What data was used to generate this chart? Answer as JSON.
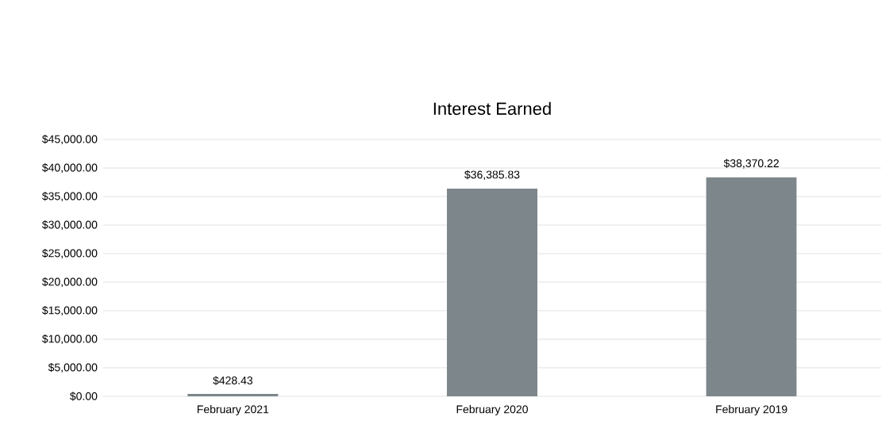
{
  "chart_data": {
    "type": "bar",
    "title": "Interest Earned",
    "categories": [
      "February 2021",
      "February 2020",
      "February 2019"
    ],
    "values": [
      428.43,
      36385.83,
      38370.22
    ],
    "value_labels": [
      "$428.43",
      "$36,385.83",
      "$38,370.22"
    ],
    "color": "#7d878b",
    "ylim": [
      0,
      45000
    ],
    "yticks": [
      {
        "value": 0,
        "label": "$0.00"
      },
      {
        "value": 5000,
        "label": "$5,000.00"
      },
      {
        "value": 10000,
        "label": "$10,000.00"
      },
      {
        "value": 15000,
        "label": "$15,000.00"
      },
      {
        "value": 20000,
        "label": "$20,000.00"
      },
      {
        "value": 25000,
        "label": "$25,000.00"
      },
      {
        "value": 30000,
        "label": "$30,000.00"
      },
      {
        "value": 35000,
        "label": "$35,000.00"
      },
      {
        "value": 40000,
        "label": "$40,000.00"
      },
      {
        "value": 45000,
        "label": "$45,000.00"
      }
    ],
    "grid": "y"
  }
}
